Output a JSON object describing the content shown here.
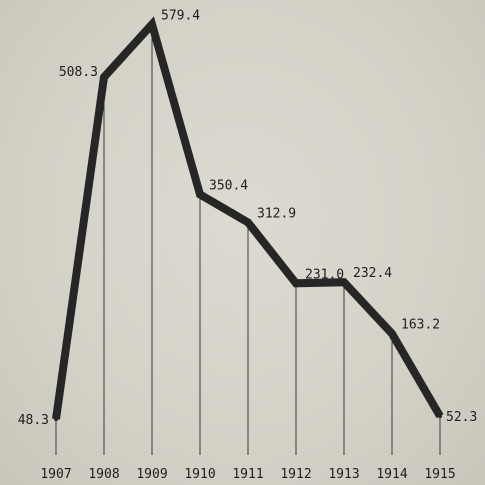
{
  "chart_data": {
    "type": "line",
    "title": "",
    "xlabel": "",
    "ylabel": "",
    "categories": [
      "1907",
      "1908",
      "1909",
      "1910",
      "1911",
      "1912",
      "1913",
      "1914",
      "1915"
    ],
    "series": [
      {
        "values": [
          48.3,
          508.3,
          579.4,
          350.4,
          312.9,
          231.0,
          232.4,
          163.2,
          52.3
        ],
        "labels": [
          "48.3",
          "508.3",
          "579.4",
          "350.4",
          "312.9",
          "231.0",
          "232.4",
          "163.2",
          "52.3"
        ]
      }
    ],
    "ylim": [
      0,
      600
    ],
    "grid": false,
    "drop_lines": true,
    "colors": {
      "line": "#262626",
      "drop_line": "#3a3a3a",
      "text": "#1e1e1e",
      "background": "#d5d2c8"
    }
  }
}
